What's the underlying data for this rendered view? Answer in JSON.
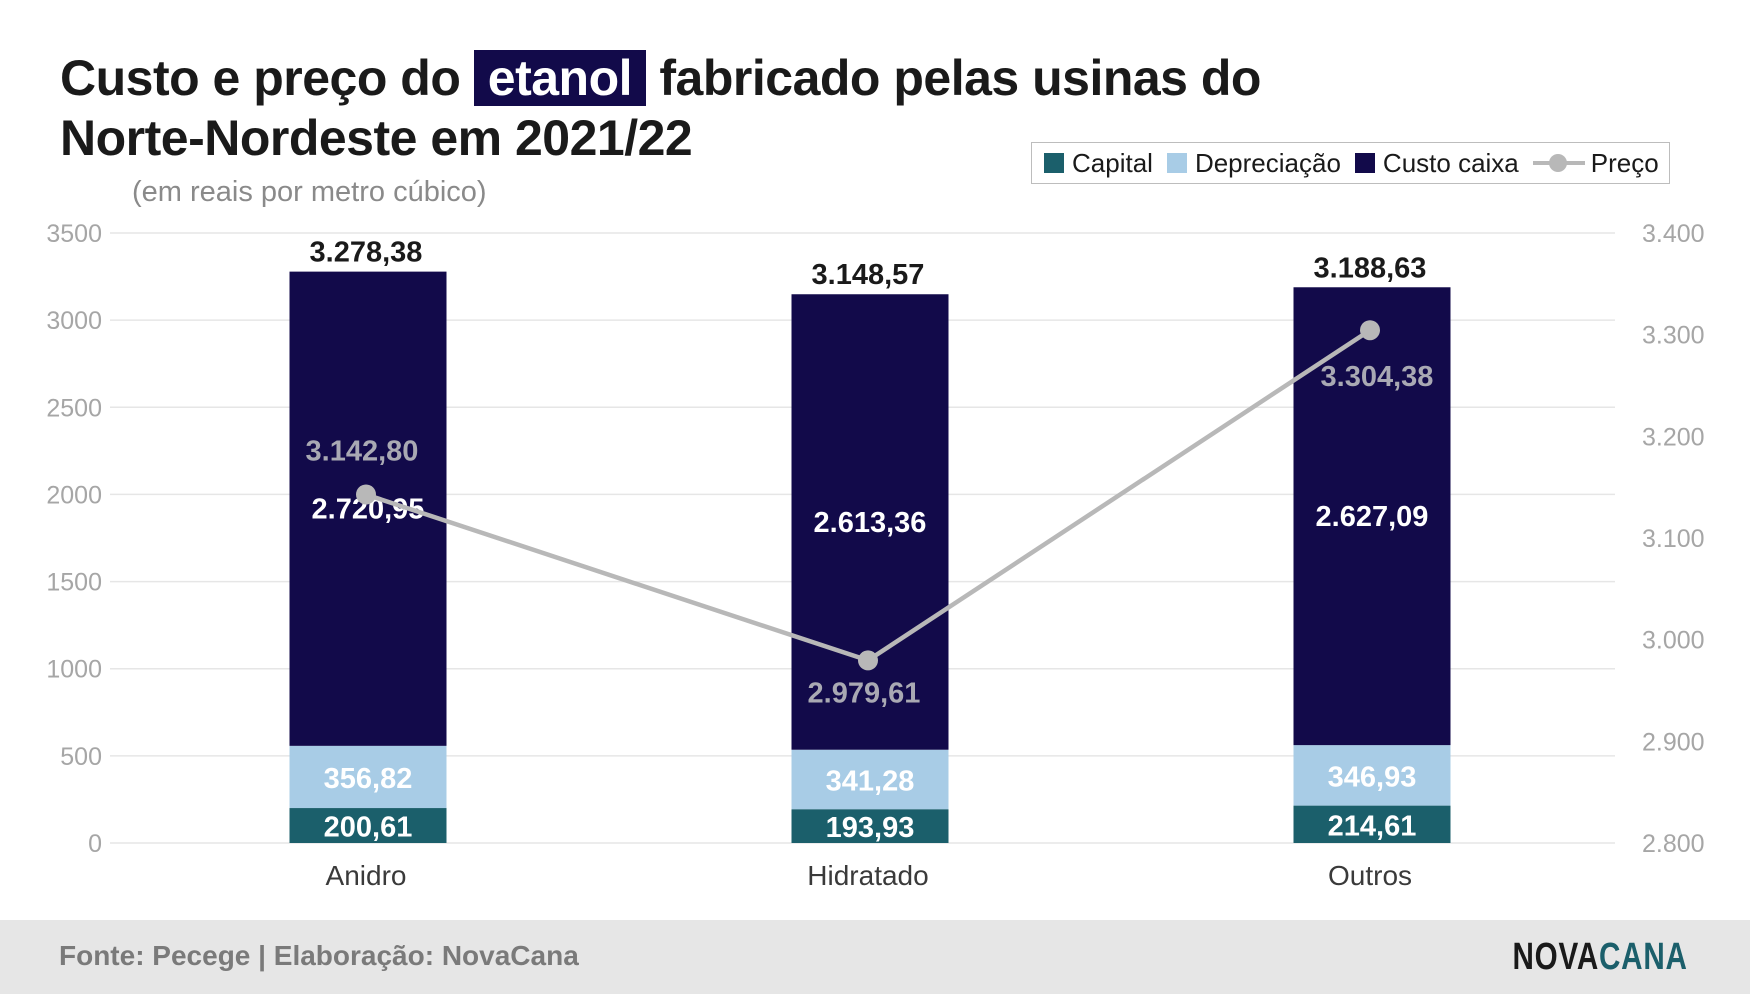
{
  "title": {
    "before": "Custo e preço do ",
    "highlight": "etanol",
    "after": " fabricado pelas usinas do Norte-Nordeste em 2021/22"
  },
  "subtitle": "(em reais por metro cúbico)",
  "legend": {
    "capital": "Capital",
    "depreciacao": "Depreciação",
    "custo_caixa": "Custo caixa",
    "preco": "Preço"
  },
  "footer": {
    "source": "Fonte: Pecege | Elaboração: NovaCana",
    "brand_part1": "NOVA",
    "brand_part2": "CANA"
  },
  "colors": {
    "capital": "#1b5f6b",
    "depreciacao": "#a8cce6",
    "custo_caixa": "#120a4a",
    "preco": "#b8b8b8",
    "title_highlight": "#120a4a"
  },
  "chart_data": {
    "type": "bar",
    "stacked": true,
    "categories": [
      "Anidro",
      "Hidratado",
      "Outros"
    ],
    "series": [
      {
        "name": "Capital",
        "values": [
          200.61,
          193.93,
          214.61
        ],
        "labels": [
          "200,61",
          "193,93",
          "214,61"
        ]
      },
      {
        "name": "Depreciação",
        "values": [
          356.82,
          341.28,
          346.93
        ],
        "labels": [
          "356,82",
          "341,28",
          "346,93"
        ]
      },
      {
        "name": "Custo caixa",
        "values": [
          2720.95,
          2613.36,
          2627.09
        ],
        "labels": [
          "2.720,95",
          "2.613,36",
          "2.627,09"
        ]
      }
    ],
    "totals": [
      3278.38,
      3148.57,
      3188.63
    ],
    "total_labels": [
      "3.278,38",
      "3.148,57",
      "3.188,63"
    ],
    "line_series": {
      "name": "Preço",
      "axis": "right",
      "values": [
        3142.8,
        2979.61,
        3304.38
      ],
      "labels": [
        "3.142,80",
        "2.979,61",
        "3.304,38"
      ]
    },
    "y_left": {
      "min": 0,
      "max": 3500,
      "ticks": [
        "0",
        "500",
        "1000",
        "1500",
        "2000",
        "2500",
        "3000",
        "3500"
      ]
    },
    "y_right": {
      "min": 2800,
      "max": 3400,
      "ticks": [
        "2.800",
        "2.900",
        "3.000",
        "3.100",
        "3.200",
        "3.300",
        "3.400"
      ]
    },
    "grid": true,
    "legend_position": "top-right"
  }
}
